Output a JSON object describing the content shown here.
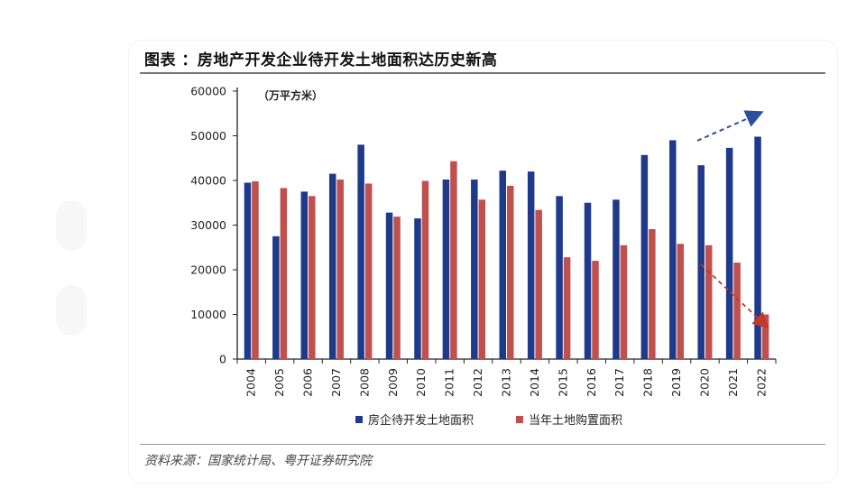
{
  "figure": {
    "title": "图表  ：房地产开发企业待开发土地面积达历史新高",
    "source": "资料来源：国家统计局、粤开证券研究院"
  },
  "colors": {
    "series_a": "#1f3a8a",
    "series_b": "#c0504d",
    "axis": "#222222",
    "arrow_up": "#2c4f9c",
    "arrow_down": "#c0392b"
  },
  "chart_data": {
    "type": "bar",
    "unit_label": "（万平方米）",
    "categories": [
      "2004",
      "2005",
      "2006",
      "2007",
      "2008",
      "2009",
      "2010",
      "2011",
      "2012",
      "2013",
      "2014",
      "2015",
      "2016",
      "2017",
      "2018",
      "2019",
      "2020",
      "2021",
      "2022"
    ],
    "series": [
      {
        "name": "房企待开发土地面积",
        "values": [
          39500,
          27500,
          37500,
          41500,
          48000,
          32800,
          31500,
          40200,
          40200,
          42200,
          42000,
          36500,
          35000,
          35700,
          45700,
          49000,
          43400,
          47300,
          49800
        ]
      },
      {
        "name": "当年土地购置面积",
        "values": [
          39800,
          38300,
          36500,
          40200,
          39300,
          31900,
          39900,
          44300,
          35700,
          38800,
          33400,
          22800,
          22000,
          25500,
          29100,
          25800,
          25500,
          21600,
          10000
        ]
      }
    ],
    "y_ticks": [
      "60000",
      "50000",
      "40000",
      "30000",
      "20000",
      "10000",
      "0"
    ],
    "ylim": [
      0,
      60000
    ],
    "legend_position": "bottom",
    "grid": false
  }
}
